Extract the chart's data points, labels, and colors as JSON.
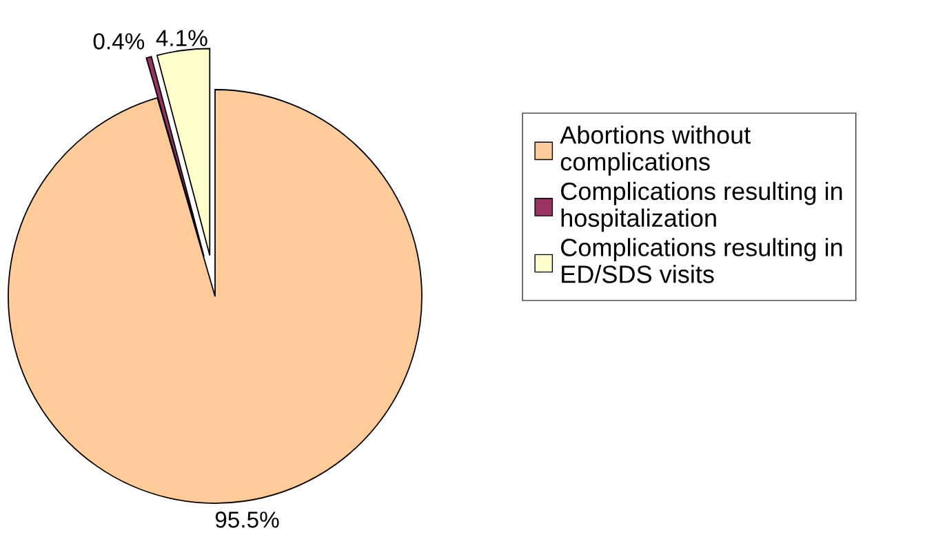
{
  "chart_data": {
    "type": "pie",
    "categories": [
      "Abortions without\ncomplications",
      "Complications resulting in\nhospitalization",
      "Complications resulting in\nED/SDS visits"
    ],
    "values": [
      95.5,
      0.4,
      4.1
    ],
    "colors": [
      "#ffcc99",
      "#993366",
      "#ffffcc"
    ],
    "value_labels": [
      "95.5%",
      "0.4%",
      "4.1%"
    ],
    "legend": "right"
  }
}
